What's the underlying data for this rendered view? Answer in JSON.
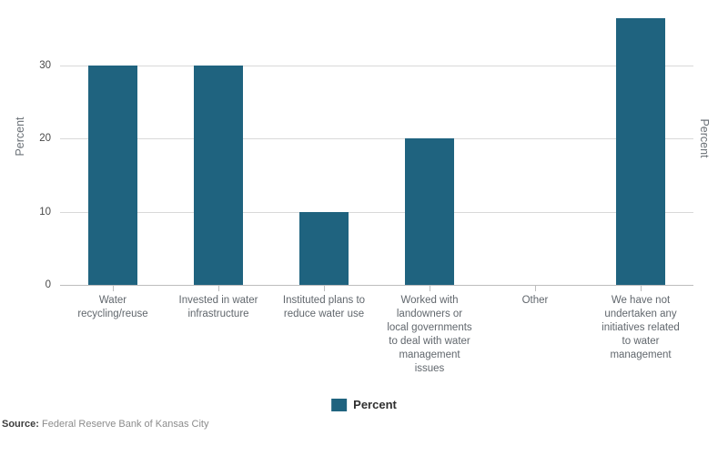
{
  "chart_data": {
    "type": "bar",
    "title": "",
    "categories": [
      "Water recycling/reuse",
      "Invested in water infrastructure",
      "Instituted plans to reduce water use",
      "Worked with landowners or local governments to deal with water management issues",
      "Other",
      "We have not undertaken any initiatives related to water management"
    ],
    "category_lines": [
      [
        "Water",
        "recycling/reuse"
      ],
      [
        "Invested in water",
        "infrastructure"
      ],
      [
        "Instituted plans to",
        "reduce water use"
      ],
      [
        "Worked with",
        "landowners or",
        "local governments",
        "to deal with water",
        "management",
        "issues"
      ],
      [
        "Other"
      ],
      [
        "We have not",
        "undertaken any",
        "initiatives related",
        "to water",
        "management"
      ]
    ],
    "series": [
      {
        "name": "Percent",
        "values": [
          30,
          30,
          10,
          20,
          0,
          36.5
        ]
      }
    ],
    "ylabel": "Percent",
    "ylabel_right": "Percent",
    "yticks": [
      0,
      10,
      20,
      30
    ],
    "ylim": [
      0,
      39
    ],
    "grid": true,
    "legend": {
      "position": "bottom",
      "entries": [
        "Percent"
      ]
    },
    "colors": {
      "bar": "#1f637f",
      "gridline": "#d9d9d9",
      "axis_line": "#bdbdbd",
      "ytick_text": "#4a4a4a",
      "category_text": "#61676d",
      "axis_title_text": "#6b7177",
      "legend_text": "#2f2f2f"
    }
  },
  "source": {
    "label": "Source:",
    "text": " Federal Reserve Bank of Kansas City"
  }
}
